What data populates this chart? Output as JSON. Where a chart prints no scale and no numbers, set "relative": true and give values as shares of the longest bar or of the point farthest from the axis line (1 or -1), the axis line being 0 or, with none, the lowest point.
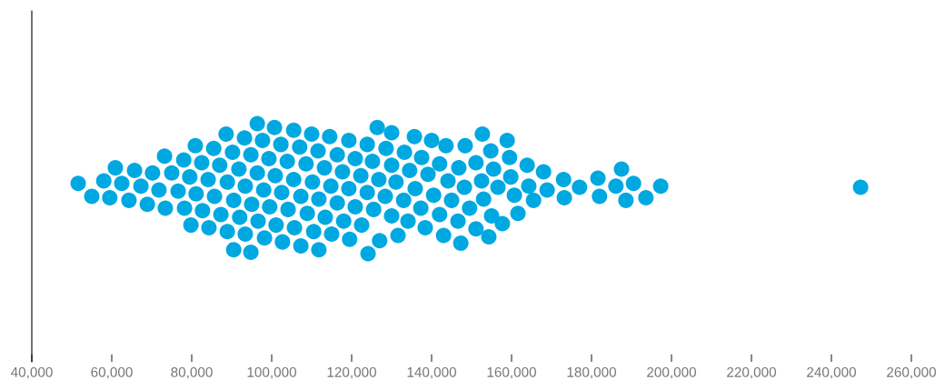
{
  "chart_data": {
    "type": "scatter",
    "relative": true,
    "color": "#00a8e1",
    "marker": "circle",
    "grid": false,
    "legend": false,
    "tick_labels": "x",
    "xlim": [
      40000,
      260000
    ],
    "xticks": [
      {
        "value": 40000,
        "label": "40,000"
      },
      {
        "value": 60000,
        "label": "60,000"
      },
      {
        "value": 80000,
        "label": "80,000"
      },
      {
        "value": 100000,
        "label": "100,000"
      },
      {
        "value": 120000,
        "label": "120,000"
      },
      {
        "value": 140000,
        "label": "140,000"
      },
      {
        "value": 160000,
        "label": "160,000"
      },
      {
        "value": 180000,
        "label": "180,000"
      },
      {
        "value": 200000,
        "label": "200,000"
      },
      {
        "value": 220000,
        "label": "220,000"
      },
      {
        "value": 240000,
        "label": "240,000"
      },
      {
        "value": 260000,
        "label": "260,000"
      }
    ],
    "x": [
      51600,
      55000,
      58000,
      59500,
      60900,
      62500,
      64300,
      65700,
      67300,
      68900,
      70200,
      71800,
      73200,
      73400,
      75000,
      76600,
      78000,
      78200,
      79500,
      79800,
      80900,
      81100,
      82500,
      82700,
      84100,
      84300,
      85500,
      85700,
      87000,
      87300,
      88600,
      88900,
      88900,
      90200,
      90500,
      90500,
      91800,
      92000,
      93200,
      93400,
      93400,
      94800,
      94800,
      95000,
      96400,
      96400,
      96600,
      97700,
      98000,
      98200,
      99300,
      99500,
      100700,
      100900,
      101100,
      102300,
      102500,
      102700,
      103900,
      104100,
      105500,
      105500,
      105700,
      107000,
      107300,
      107300,
      108600,
      108900,
      110000,
      110200,
      110500,
      111600,
      111800,
      111800,
      113200,
      113400,
      114500,
      114800,
      115000,
      116400,
      116400,
      117700,
      118000,
      119300,
      119300,
      119500,
      120900,
      120900,
      122300,
      122500,
      123900,
      123900,
      124100,
      125200,
      125500,
      126400,
      126800,
      127000,
      128600,
      128400,
      130000,
      130000,
      130000,
      131100,
      131600,
      133200,
      133000,
      134100,
      134500,
      135700,
      135900,
      137500,
      137300,
      138400,
      139100,
      140000,
      140500,
      142000,
      142000,
      143000,
      143600,
      144100,
      145000,
      146800,
      147300,
      146600,
      148400,
      148200,
      149500,
      151100,
      151100,
      152700,
      152500,
      153000,
      154300,
      154800,
      155500,
      155000,
      156600,
      157700,
      158900,
      159500,
      159800,
      160700,
      161600,
      163900,
      164300,
      165500,
      168000,
      168900,
      173000,
      173200,
      177000,
      181600,
      182000,
      187500,
      186100,
      188600,
      190500,
      193600,
      197300,
      247300
    ],
    "values": [
      0.54,
      0.44,
      0.56,
      0.43,
      0.66,
      0.54,
      0.41,
      0.64,
      0.52,
      0.38,
      0.62,
      0.49,
      0.75,
      0.35,
      0.62,
      0.48,
      0.72,
      0.35,
      0.59,
      0.22,
      0.83,
      0.46,
      0.7,
      0.33,
      0.57,
      0.2,
      0.81,
      0.44,
      0.68,
      0.3,
      0.92,
      0.55,
      0.17,
      0.78,
      0.41,
      0.03,
      0.65,
      0.28,
      0.89,
      0.52,
      0.15,
      0.01,
      0.76,
      0.38,
      1.0,
      0.62,
      0.25,
      0.87,
      0.49,
      0.12,
      0.73,
      0.36,
      0.97,
      0.6,
      0.22,
      0.84,
      0.47,
      0.09,
      0.71,
      0.34,
      0.95,
      0.57,
      0.2,
      0.82,
      0.44,
      0.06,
      0.69,
      0.31,
      0.92,
      0.55,
      0.17,
      0.79,
      0.42,
      0.03,
      0.66,
      0.28,
      0.9,
      0.52,
      0.15,
      0.76,
      0.39,
      0.63,
      0.25,
      0.87,
      0.5,
      0.11,
      0.73,
      0.36,
      0.6,
      0.22,
      0.84,
      0.47,
      0,
      0.71,
      0.34,
      0.97,
      0.57,
      0.1,
      0.81,
      0.44,
      0.93,
      0.68,
      0.29,
      0.55,
      0.14,
      0.78,
      0.41,
      0.25,
      0.64,
      0.9,
      0.5,
      0.74,
      0.35,
      0.2,
      0.61,
      0.87,
      0.45,
      0.69,
      0.3,
      0.14,
      0.83,
      0.56,
      0.41,
      0.66,
      0.08,
      0.25,
      0.83,
      0.51,
      0.35,
      0.7,
      0.19,
      0.92,
      0.56,
      0.42,
      0.13,
      0.79,
      0.65,
      0.29,
      0.51,
      0.23,
      0.87,
      0.74,
      0.59,
      0.45,
      0.31,
      0.68,
      0.52,
      0.41,
      0.63,
      0.49,
      0.57,
      0.43,
      0.51,
      0.58,
      0.44,
      0.65,
      0.52,
      0.41,
      0.54,
      0.43,
      0.52,
      0.51
    ]
  }
}
